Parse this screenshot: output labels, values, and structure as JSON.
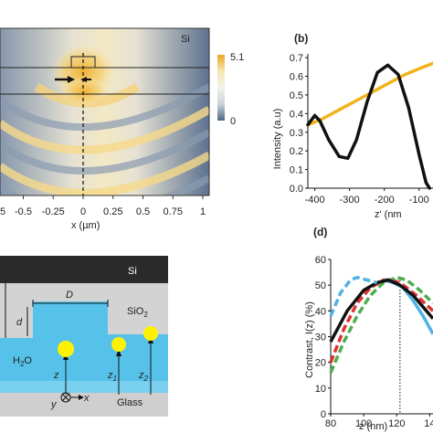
{
  "panel_a": {
    "material_label": "Si",
    "colorbar_max": "5.1",
    "colorbar_min": "0",
    "colorbar_colors": [
      "#e9a82a",
      "#f7e7b0",
      "#f2f2ec",
      "#c9d2dc",
      "#4f6784"
    ],
    "x_ticks": [
      "-0.5",
      "-0.25",
      "0",
      "0.25",
      "0.5",
      "0.75",
      "1"
    ],
    "x_tick_partial": "5",
    "x_label": "x (µm)"
  },
  "panel_b": {
    "panel_letter": "(b)",
    "y_label": "Intensity (a.u)",
    "y_ticks": [
      "0.0",
      "0.1",
      "0.2",
      "0.3",
      "0.4",
      "0.5",
      "0.6",
      "0.7"
    ],
    "x_ticks": [
      "-400",
      "-300",
      "-200",
      "-100"
    ],
    "x_label_partial": "z' (nm",
    "colors": {
      "black_curve": "#111111",
      "yellow_curve": "#f2b41d"
    }
  },
  "panel_c": {
    "top_label": "Si",
    "oxide_label": "SiO",
    "oxide_sub": "2",
    "water_label": "H",
    "water_sub": "2",
    "water_tail": "O",
    "glass_label": "Glass",
    "D_label": "D",
    "d_label": "d",
    "z_axis": "z",
    "x_axis": "x",
    "y_axis": "y",
    "z1_label": "z",
    "z1_sub": "1",
    "z2_label": "z",
    "z2_sub": "2",
    "colors": {
      "si": "#2b2b2b",
      "oxide": "#d3d3d3",
      "water": "#56c2ea",
      "particle": "#fff200",
      "glass": "#cfcfcf"
    }
  },
  "panel_d": {
    "panel_letter": "(d)",
    "y_label": "Contrast, I(z) (%)",
    "y_ticks": [
      "0",
      "10",
      "20",
      "30",
      "40",
      "50",
      "60"
    ],
    "x_ticks": [
      "80",
      "100",
      "120",
      "14"
    ],
    "x_label": "z (nm)",
    "colors": {
      "black": "#111111",
      "blue": "#4fb3e6",
      "red": "#e03030",
      "green": "#4caf50"
    }
  },
  "chart_data": [
    {
      "type": "line",
      "panel": "(b)",
      "xlabel": "z' (nm",
      "ylabel": "Intensity (a.u)",
      "xlim": [
        -420,
        -60
      ],
      "ylim": [
        0.0,
        0.72
      ],
      "series": [
        {
          "values": [
            [
              -420,
              0.34
            ],
            [
              -380,
              0.37
            ],
            [
              -340,
              0.41
            ],
            [
              -300,
              0.45
            ],
            [
              -260,
              0.49
            ],
            [
              -220,
              0.53
            ],
            [
              -180,
              0.57
            ],
            [
              -140,
              0.61
            ],
            [
              -100,
              0.64
            ],
            [
              -60,
              0.67
            ]
          ]
        },
        {
          "values": [
            [
              -420,
              0.34
            ],
            [
              -400,
              0.39
            ],
            [
              -385,
              0.36
            ],
            [
              -360,
              0.26
            ],
            [
              -330,
              0.17
            ],
            [
              -305,
              0.16
            ],
            [
              -280,
              0.26
            ],
            [
              -250,
              0.46
            ],
            [
              -220,
              0.62
            ],
            [
              -190,
              0.66
            ],
            [
              -160,
              0.61
            ],
            [
              -130,
              0.43
            ],
            [
              -100,
              0.18
            ],
            [
              -80,
              0.03
            ],
            [
              -70,
              0.0
            ]
          ]
        }
      ]
    },
    {
      "type": "line",
      "panel": "(d)",
      "xlabel": "z (nm)",
      "ylabel": "Contrast, I(z) (%)",
      "xlim": [
        80,
        142
      ],
      "ylim": [
        0,
        60
      ],
      "series": [
        {
          "style": "solid",
          "values": [
            [
              80,
              28
            ],
            [
              90,
              40
            ],
            [
              100,
              48
            ],
            [
              108,
              51
            ],
            [
              115,
              52
            ],
            [
              122,
              50
            ],
            [
              130,
              46
            ],
            [
              138,
              40
            ],
            [
              142,
              37
            ]
          ]
        },
        {
          "style": "solid",
          "values": [
            [
              112,
              52
            ],
            [
              118,
              51
            ],
            [
              124,
              49
            ],
            [
              130,
              44
            ],
            [
              136,
              38
            ],
            [
              142,
              31
            ]
          ]
        },
        {
          "style": "dashed",
          "values": [
            [
              80,
              38
            ],
            [
              86,
              47
            ],
            [
              92,
              52
            ],
            [
              96,
              53
            ],
            [
              102,
              52
            ],
            [
              108,
              51
            ]
          ]
        },
        {
          "style": "dashed",
          "values": [
            [
              80,
              20
            ],
            [
              88,
              33
            ],
            [
              96,
              43
            ],
            [
              104,
              49
            ],
            [
              112,
              52
            ],
            [
              118,
              52
            ],
            [
              124,
              50
            ],
            [
              132,
              46
            ],
            [
              142,
              40
            ]
          ]
        },
        {
          "style": "dashed",
          "values": [
            [
              80,
              16
            ],
            [
              88,
              28
            ],
            [
              96,
              38
            ],
            [
              104,
              46
            ],
            [
              112,
              51
            ],
            [
              120,
              53
            ],
            [
              126,
              52
            ],
            [
              134,
              48
            ],
            [
              142,
              43
            ]
          ]
        }
      ],
      "annotations": [
        {
          "type": "vertical-dotted-line",
          "x": 122
        }
      ]
    }
  ]
}
